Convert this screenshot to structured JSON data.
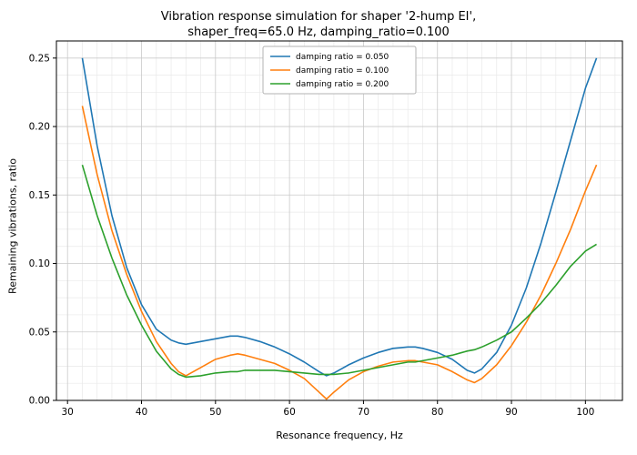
{
  "title": {
    "line1": "Vibration response simulation for shaper '2-hump EI',",
    "line2": "shaper_freq=65.0 Hz, damping_ratio=0.100"
  },
  "chart_data": {
    "type": "line",
    "title": "Vibration response simulation for shaper '2-hump EI', shaper_freq=65.0 Hz, damping_ratio=0.100",
    "xlabel": "Resonance frequency, Hz",
    "ylabel": "Remaining vibrations, ratio",
    "xlim": [
      28.5,
      105.0
    ],
    "ylim": [
      0.0,
      0.2625
    ],
    "grid": "both",
    "x_minor_step": 2,
    "y_minor_step": 0.0125,
    "x_ticks": [
      30,
      40,
      50,
      60,
      70,
      80,
      90,
      100
    ],
    "x_tick_labels": [
      "30",
      "40",
      "50",
      "60",
      "70",
      "80",
      "90",
      "100"
    ],
    "y_ticks": [
      0.0,
      0.05,
      0.1,
      0.15,
      0.2,
      0.25
    ],
    "y_tick_labels": [
      "0.00",
      "0.05",
      "0.10",
      "0.15",
      "0.20",
      "0.25"
    ],
    "legend_position": "upper center",
    "x": [
      32,
      34,
      36,
      38,
      40,
      42,
      44,
      45,
      46,
      48,
      50,
      52,
      53,
      54,
      56,
      58,
      60,
      62,
      64,
      65,
      66,
      68,
      70,
      72,
      74,
      76,
      77,
      78,
      80,
      82,
      84,
      85,
      86,
      88,
      90,
      92,
      94,
      96,
      98,
      100,
      101.5
    ],
    "series": [
      {
        "name": "damping ratio = 0.050",
        "color": "#1f77b4",
        "values": [
          0.25,
          0.186,
          0.135,
          0.097,
          0.07,
          0.052,
          0.044,
          0.042,
          0.041,
          0.043,
          0.045,
          0.047,
          0.047,
          0.046,
          0.043,
          0.039,
          0.034,
          0.028,
          0.021,
          0.018,
          0.02,
          0.026,
          0.031,
          0.035,
          0.038,
          0.039,
          0.039,
          0.038,
          0.035,
          0.03,
          0.022,
          0.02,
          0.023,
          0.035,
          0.055,
          0.082,
          0.115,
          0.152,
          0.19,
          0.228,
          0.25
        ]
      },
      {
        "name": "damping ratio = 0.100",
        "color": "#ff7f0e",
        "values": [
          0.215,
          0.165,
          0.124,
          0.092,
          0.065,
          0.043,
          0.027,
          0.021,
          0.018,
          0.024,
          0.03,
          0.033,
          0.034,
          0.033,
          0.03,
          0.027,
          0.022,
          0.016,
          0.006,
          0.001,
          0.006,
          0.015,
          0.021,
          0.025,
          0.028,
          0.029,
          0.029,
          0.028,
          0.026,
          0.021,
          0.015,
          0.013,
          0.016,
          0.026,
          0.04,
          0.057,
          0.077,
          0.1,
          0.125,
          0.153,
          0.172
        ]
      },
      {
        "name": "damping ratio = 0.200",
        "color": "#2ca02c",
        "values": [
          0.172,
          0.135,
          0.104,
          0.077,
          0.055,
          0.036,
          0.023,
          0.019,
          0.017,
          0.018,
          0.02,
          0.021,
          0.021,
          0.022,
          0.022,
          0.022,
          0.021,
          0.02,
          0.019,
          0.019,
          0.019,
          0.02,
          0.022,
          0.024,
          0.026,
          0.028,
          0.028,
          0.029,
          0.031,
          0.033,
          0.036,
          0.037,
          0.039,
          0.044,
          0.05,
          0.06,
          0.071,
          0.084,
          0.098,
          0.109,
          0.114
        ]
      }
    ]
  },
  "colors": {
    "major_grid": "#c9c9c9",
    "minor_grid": "#e9e9e9",
    "spine": "#000000",
    "legend_border": "#b3b3b3"
  }
}
